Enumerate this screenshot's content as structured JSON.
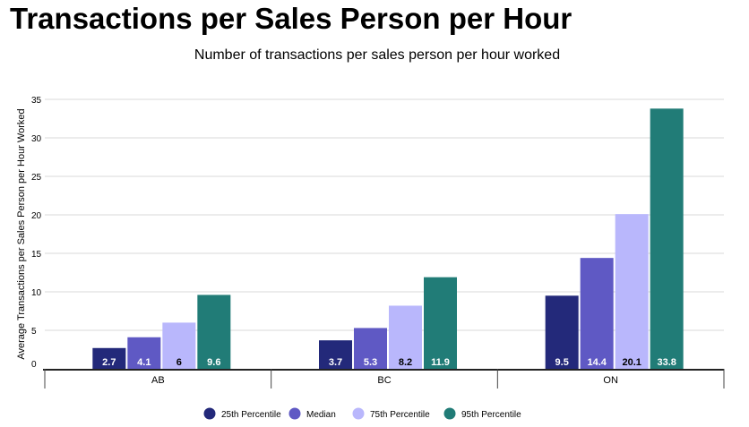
{
  "page": {
    "title": "Transactions per Sales Person per Hour"
  },
  "chart_data": {
    "type": "bar",
    "title": "Number of transactions per sales person per hour worked",
    "xlabel": "",
    "ylabel": "Average Transactions per Sales Person per Hour Worked",
    "categories": [
      "AB",
      "BC",
      "ON"
    ],
    "series": [
      {
        "name": "25th Percentile",
        "color": "#23297a",
        "values": [
          2.7,
          3.7,
          9.5
        ]
      },
      {
        "name": "Median",
        "color": "#5f59c4",
        "values": [
          4.1,
          5.3,
          14.4
        ]
      },
      {
        "name": "75th Percentile",
        "color": "#b9b7fc",
        "values": [
          6,
          8.2,
          20.1
        ]
      },
      {
        "name": "95th Percentile",
        "color": "#217c77",
        "values": [
          9.6,
          11.9,
          33.8
        ]
      }
    ],
    "ylim": [
      0,
      35
    ],
    "yticks": [
      0,
      5,
      10,
      15,
      20,
      25,
      30,
      35
    ],
    "grid": true,
    "legend_position": "bottom-center",
    "data_label_colors": [
      "#ffffff",
      "#ffffff",
      "#000000",
      "#ffffff"
    ]
  }
}
